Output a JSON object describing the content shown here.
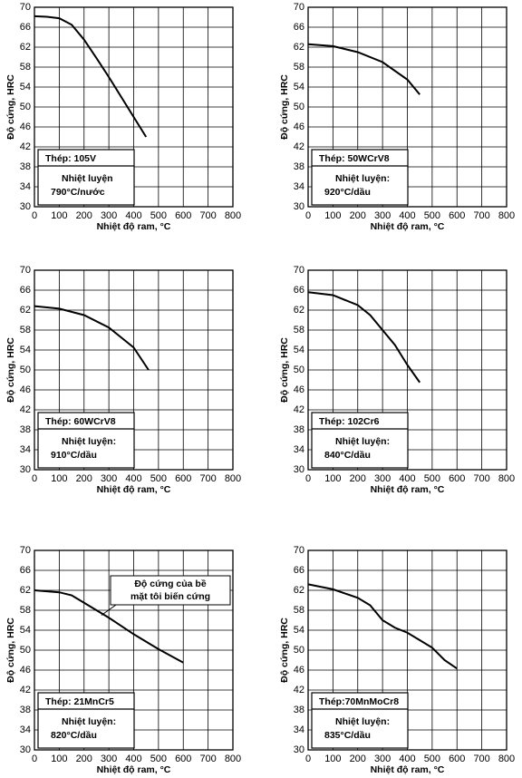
{
  "chart_data": [
    {
      "type": "line",
      "ylabel": "Độ cứng, HRC",
      "xlabel": "Nhiệt độ ram, °C",
      "color": "#000000",
      "grid": true,
      "xlim": [
        0,
        800
      ],
      "ylim": [
        30,
        70
      ],
      "xticks": [
        0,
        100,
        200,
        300,
        400,
        500,
        600,
        700,
        800
      ],
      "yticks": [
        30,
        34,
        38,
        42,
        46,
        50,
        54,
        58,
        62,
        66,
        70
      ],
      "x": [
        0,
        50,
        100,
        150,
        200,
        250,
        300,
        350,
        400,
        450
      ],
      "values": [
        68.2,
        68.1,
        67.8,
        66.5,
        63.5,
        59.8,
        56,
        52,
        48,
        44
      ],
      "steel": "Thép: 105V",
      "treatment_label": "Nhiệt luyện",
      "treatment": "790°C/nước"
    },
    {
      "type": "line",
      "ylabel": "Độ cứng, HRC",
      "xlabel": "Nhiệt độ ram, °C",
      "color": "#000000",
      "grid": true,
      "xlim": [
        0,
        800
      ],
      "ylim": [
        30,
        70
      ],
      "xticks": [
        0,
        100,
        200,
        300,
        400,
        500,
        600,
        700,
        800
      ],
      "yticks": [
        30,
        34,
        38,
        42,
        46,
        50,
        54,
        58,
        62,
        66,
        70
      ],
      "x": [
        0,
        100,
        200,
        300,
        400,
        450
      ],
      "values": [
        62.6,
        62.2,
        61,
        59,
        55.5,
        52.5
      ],
      "steel": "Thép: 50WCrV8",
      "treatment_label": "Nhiệt luyện:",
      "treatment": "920°C/dầu"
    },
    {
      "type": "line",
      "ylabel": "Độ cứng, HRC",
      "xlabel": "Nhiệt độ ram, °C",
      "color": "#000000",
      "grid": true,
      "xlim": [
        0,
        800
      ],
      "ylim": [
        30,
        70
      ],
      "xticks": [
        0,
        100,
        200,
        300,
        400,
        500,
        600,
        700,
        800
      ],
      "yticks": [
        30,
        34,
        38,
        42,
        46,
        50,
        54,
        58,
        62,
        66,
        70
      ],
      "x": [
        0,
        100,
        200,
        300,
        400,
        460
      ],
      "values": [
        62.8,
        62.3,
        61,
        58.5,
        54.5,
        50
      ],
      "steel": "Thép: 60WCrV8",
      "treatment_label": "Nhiệt luyện:",
      "treatment": "910°C/dầu"
    },
    {
      "type": "line",
      "ylabel": "Độ cứng, HRC",
      "xlabel": "Nhiệt độ ram, °C",
      "color": "#000000",
      "grid": true,
      "xlim": [
        0,
        800
      ],
      "ylim": [
        30,
        70
      ],
      "xticks": [
        0,
        100,
        200,
        300,
        400,
        500,
        600,
        700,
        800
      ],
      "yticks": [
        30,
        34,
        38,
        42,
        46,
        50,
        54,
        58,
        62,
        66,
        70
      ],
      "x": [
        0,
        100,
        200,
        250,
        300,
        350,
        400,
        450
      ],
      "values": [
        65.6,
        65,
        63,
        61,
        58,
        55,
        51,
        47.5
      ],
      "steel": "Thép: 102Cr6",
      "treatment_label": "Nhiệt luyện:",
      "treatment": "840°C/dầu"
    },
    {
      "type": "line",
      "ylabel": "Độ cứng, HRC",
      "xlabel": "Nhiệt độ ram, °C",
      "color": "#000000",
      "grid": true,
      "xlim": [
        0,
        800
      ],
      "ylim": [
        30,
        70
      ],
      "xticks": [
        0,
        100,
        200,
        300,
        400,
        500,
        600,
        700,
        800
      ],
      "yticks": [
        30,
        34,
        38,
        42,
        46,
        50,
        54,
        58,
        62,
        66,
        70
      ],
      "x": [
        0,
        100,
        150,
        200,
        300,
        400,
        500,
        600
      ],
      "values": [
        62,
        61.6,
        61,
        59.5,
        56.5,
        53.2,
        50.2,
        47.5
      ],
      "steel": "Thép: 21MnCr5",
      "treatment_label": "Nhiệt luyện:",
      "treatment": "820°C/dầu",
      "annotation": [
        "Độ cứng của bề",
        "mặt tôi biến cứng"
      ]
    },
    {
      "type": "line",
      "ylabel": "Độ cứng, HRC",
      "xlabel": "Nhiệt độ ram, °C",
      "color": "#000000",
      "grid": true,
      "xlim": [
        0,
        800
      ],
      "ylim": [
        30,
        70
      ],
      "xticks": [
        0,
        100,
        200,
        300,
        400,
        500,
        600,
        700,
        800
      ],
      "yticks": [
        30,
        34,
        38,
        42,
        46,
        50,
        54,
        58,
        62,
        66,
        70
      ],
      "x": [
        0,
        100,
        200,
        250,
        300,
        350,
        400,
        450,
        500,
        550,
        600
      ],
      "values": [
        63.2,
        62.2,
        60.5,
        59,
        56,
        54.5,
        53.5,
        52,
        50.5,
        48,
        46.3
      ],
      "steel": "Thép:70MnMoCr8",
      "treatment_label": "Nhiệt luyện:",
      "treatment": "835°C/dầu"
    }
  ]
}
